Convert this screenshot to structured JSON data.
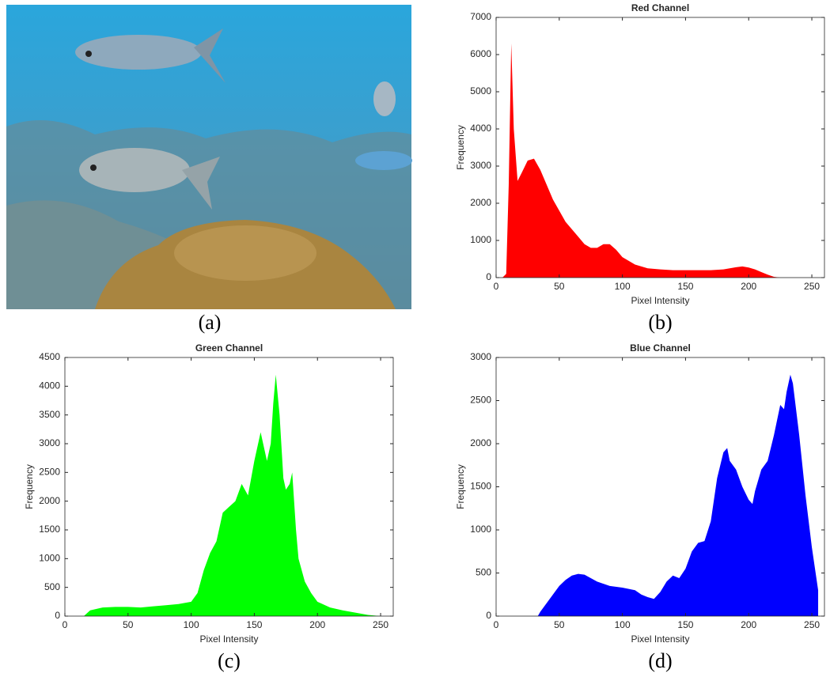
{
  "image": {
    "caption": "(a)"
  },
  "chart_data": [
    {
      "type": "area",
      "title": "Red Channel",
      "xlabel": "Pixel Intensity",
      "ylabel": "Frequency",
      "caption": "(b)",
      "color": "#ff0000",
      "x": [
        0,
        5,
        8,
        10,
        12,
        14,
        17,
        20,
        25,
        30,
        35,
        40,
        45,
        50,
        55,
        60,
        65,
        70,
        75,
        80,
        85,
        90,
        95,
        100,
        110,
        120,
        130,
        140,
        150,
        160,
        170,
        180,
        190,
        195,
        200,
        205,
        210,
        215,
        220,
        225,
        230,
        255
      ],
      "values": [
        0,
        0,
        100,
        2500,
        6300,
        4000,
        2600,
        2800,
        3150,
        3200,
        2900,
        2500,
        2100,
        1800,
        1500,
        1300,
        1100,
        900,
        800,
        800,
        900,
        900,
        750,
        550,
        350,
        250,
        220,
        200,
        200,
        200,
        200,
        220,
        280,
        300,
        270,
        220,
        150,
        80,
        20,
        0,
        0,
        0
      ],
      "xlim": [
        0,
        260
      ],
      "ylim": [
        0,
        7000
      ],
      "xticks": [
        0,
        50,
        100,
        150,
        200,
        250
      ],
      "yticks": [
        0,
        1000,
        2000,
        3000,
        4000,
        5000,
        6000,
        7000
      ]
    },
    {
      "type": "area",
      "title": "Green Channel",
      "xlabel": "Pixel Intensity",
      "ylabel": "Frequency",
      "caption": "(c)",
      "color": "#00ff00",
      "x": [
        0,
        10,
        15,
        20,
        30,
        40,
        50,
        60,
        70,
        80,
        90,
        100,
        105,
        110,
        115,
        120,
        125,
        130,
        135,
        140,
        145,
        150,
        155,
        160,
        163,
        165,
        167,
        170,
        173,
        175,
        178,
        180,
        183,
        185,
        190,
        195,
        200,
        210,
        220,
        230,
        240,
        250,
        255
      ],
      "values": [
        0,
        0,
        0,
        100,
        150,
        160,
        160,
        150,
        170,
        190,
        210,
        250,
        400,
        800,
        1100,
        1300,
        1800,
        1900,
        2000,
        2300,
        2100,
        2700,
        3200,
        2700,
        3000,
        3700,
        4200,
        3500,
        2400,
        2200,
        2300,
        2500,
        1500,
        1000,
        600,
        400,
        250,
        150,
        100,
        60,
        20,
        0,
        0
      ],
      "xlim": [
        0,
        260
      ],
      "ylim": [
        0,
        4500
      ],
      "xticks": [
        0,
        50,
        100,
        150,
        200,
        250
      ],
      "yticks": [
        0,
        500,
        1000,
        1500,
        2000,
        2500,
        3000,
        3500,
        4000,
        4500
      ]
    },
    {
      "type": "area",
      "title": "Blue Channel",
      "xlabel": "Pixel Intensity",
      "ylabel": "Frequency",
      "caption": "(d)",
      "color": "#0000ff",
      "x": [
        0,
        30,
        33,
        35,
        40,
        45,
        50,
        55,
        60,
        65,
        70,
        75,
        80,
        90,
        100,
        110,
        115,
        120,
        125,
        130,
        135,
        140,
        145,
        150,
        155,
        160,
        165,
        170,
        175,
        180,
        183,
        185,
        190,
        195,
        200,
        203,
        205,
        210,
        215,
        220,
        225,
        228,
        230,
        233,
        235,
        240,
        245,
        250,
        255
      ],
      "values": [
        0,
        0,
        0,
        50,
        150,
        250,
        350,
        420,
        470,
        490,
        480,
        440,
        400,
        350,
        330,
        300,
        250,
        220,
        200,
        280,
        400,
        470,
        440,
        550,
        750,
        850,
        870,
        1100,
        1600,
        1900,
        1950,
        1800,
        1700,
        1500,
        1350,
        1300,
        1450,
        1700,
        1800,
        2100,
        2450,
        2400,
        2600,
        2800,
        2700,
        2100,
        1400,
        800,
        300
      ],
      "xlim": [
        0,
        260
      ],
      "ylim": [
        0,
        3000
      ],
      "xticks": [
        0,
        50,
        100,
        150,
        200,
        250
      ],
      "yticks": [
        0,
        500,
        1000,
        1500,
        2000,
        2500,
        3000
      ]
    }
  ]
}
